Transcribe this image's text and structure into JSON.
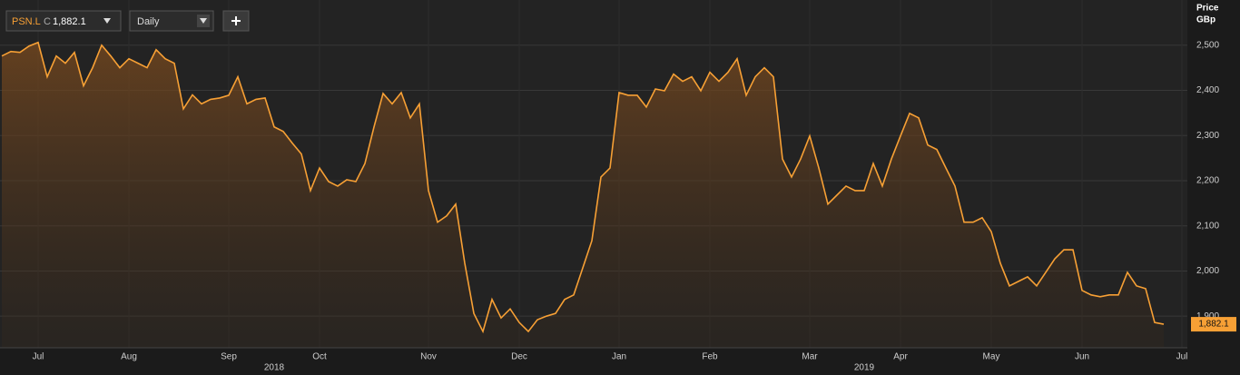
{
  "toolbar": {
    "symbol": "PSN.L",
    "close_prefix": "C",
    "close_value": "1,882.1",
    "interval": "Daily"
  },
  "chart_data": {
    "type": "line",
    "axis_title": [
      "Price",
      "GBp"
    ],
    "categories": [
      null,
      null,
      null,
      null,
      "Jul",
      null,
      null,
      null,
      null,
      null,
      null,
      null,
      null,
      null,
      "Aug",
      null,
      null,
      null,
      null,
      null,
      null,
      null,
      null,
      null,
      null,
      "Sep",
      null,
      null,
      null,
      null,
      null,
      null,
      null,
      null,
      null,
      "Oct",
      null,
      null,
      null,
      null,
      null,
      null,
      null,
      null,
      null,
      null,
      null,
      "Nov",
      null,
      null,
      null,
      null,
      null,
      null,
      null,
      null,
      null,
      "Dec",
      null,
      null,
      null,
      null,
      null,
      null,
      null,
      null,
      null,
      null,
      "Jan",
      null,
      null,
      null,
      null,
      null,
      null,
      null,
      null,
      null,
      "Feb",
      null,
      null,
      null,
      null,
      null,
      null,
      null,
      null,
      null,
      null,
      "Mar",
      null,
      null,
      null,
      null,
      null,
      null,
      null,
      null,
      null,
      "Apr",
      null,
      null,
      null,
      null,
      null,
      null,
      null,
      null,
      null,
      "May",
      null,
      null,
      null,
      null,
      null,
      null,
      null,
      null,
      null,
      "Jun",
      null,
      null,
      null,
      null,
      null,
      null,
      null,
      null,
      null,
      null,
      "Jul"
    ],
    "series": [
      {
        "name": "PSN.L",
        "color": "#f7a035",
        "values": [
          2476,
          2486,
          2484,
          2498,
          2506,
          2430,
          2476,
          2460,
          2484,
          2410,
          2450,
          2500,
          2476,
          2450,
          2470,
          2460,
          2450,
          2490,
          2470,
          2460,
          2359,
          2390,
          2370,
          2380,
          2383,
          2389,
          2430,
          2370,
          2380,
          2383,
          2319,
          2309,
          2283,
          2259,
          2178,
          2228,
          2198,
          2188,
          2202,
          2198,
          2238,
          2319,
          2393,
          2370,
          2395,
          2339,
          2370,
          2178,
          2108,
          2122,
          2148,
          2017,
          1906,
          1866,
          1937,
          1896,
          1916,
          1886,
          1866,
          1892,
          1900,
          1906,
          1937,
          1947,
          2007,
          2067,
          2208,
          2228,
          2395,
          2389,
          2389,
          2363,
          2403,
          2399,
          2436,
          2420,
          2430,
          2399,
          2440,
          2420,
          2440,
          2470,
          2389,
          2430,
          2450,
          2430,
          2248,
          2208,
          2248,
          2299,
          2228,
          2148,
          2168,
          2188,
          2178,
          2178,
          2238,
          2188,
          2248,
          2299,
          2349,
          2339,
          2279,
          2269,
          2228,
          2188,
          2108,
          2108,
          2118,
          2087,
          2017,
          1967,
          1977,
          1987,
          1967,
          1997,
          2027,
          2047,
          2047,
          1957,
          1947,
          1943,
          1947,
          1947,
          1997,
          1967,
          1961,
          1886,
          1882.1,
          null,
          null
        ]
      }
    ],
    "last_price": {
      "value": 1882.1,
      "label": "1,882.1"
    },
    "year_labels": [
      {
        "index": 30,
        "label": "2018"
      },
      {
        "index": 95,
        "label": "2019"
      }
    ],
    "ylim": [
      1830,
      2600
    ],
    "yticks": [
      {
        "value": 1900,
        "label": "1,900"
      },
      {
        "value": 2000,
        "label": "2,000"
      },
      {
        "value": 2100,
        "label": "2,100"
      },
      {
        "value": 2200,
        "label": "2,200"
      },
      {
        "value": 2300,
        "label": "2,300"
      },
      {
        "value": 2400,
        "label": "2,400"
      },
      {
        "value": 2500,
        "label": "2,500"
      }
    ],
    "grid": true
  }
}
